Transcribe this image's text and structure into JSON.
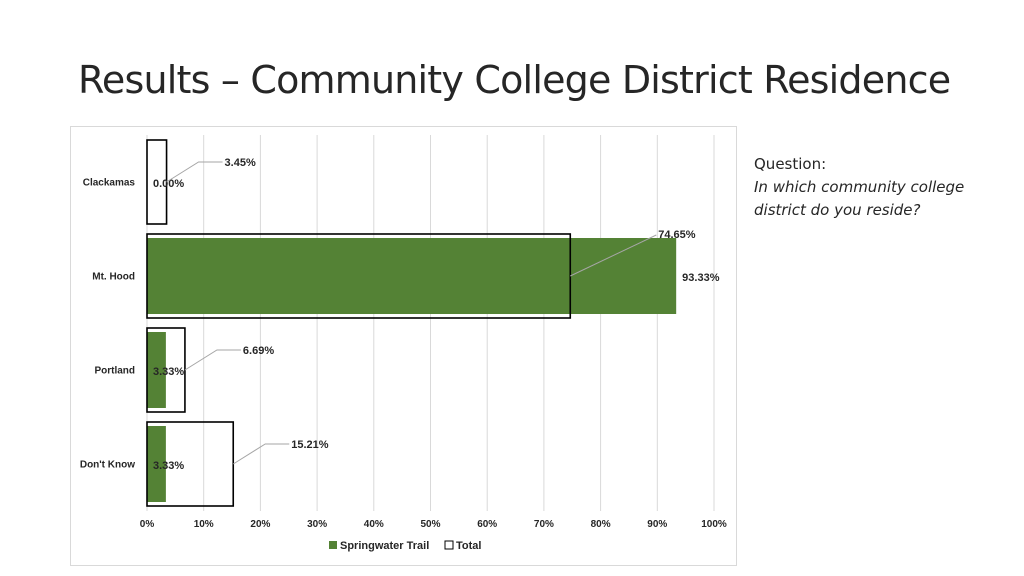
{
  "slide": {
    "title": "Results – Community College District Residence"
  },
  "question": {
    "label": "Question:",
    "text": "In which community college district do you reside?"
  },
  "colors": {
    "springwater": "#548235",
    "total_fill": "#ffffff",
    "total_stroke": "#000000",
    "grid": "#d9d9d9",
    "leader": "#a6a6a6"
  },
  "chart_data": {
    "type": "bar",
    "orientation": "horizontal",
    "title": "",
    "xlabel": "",
    "ylabel": "",
    "xlim": [
      0,
      100
    ],
    "x_ticks": [
      "0%",
      "10%",
      "20%",
      "30%",
      "40%",
      "50%",
      "60%",
      "70%",
      "80%",
      "90%",
      "100%"
    ],
    "categories": [
      "Clackamas",
      "Mt. Hood",
      "Portland",
      "Don't Know"
    ],
    "series": [
      {
        "name": "Springwater Trail",
        "values": [
          0.0,
          93.33,
          3.33,
          3.33
        ],
        "labels": [
          "0.00%",
          "93.33%",
          "3.33%",
          "3.33%"
        ]
      },
      {
        "name": "Total",
        "values": [
          3.45,
          74.65,
          6.69,
          15.21
        ],
        "labels": [
          "3.45%",
          "74.65%",
          "6.69%",
          "15.21%"
        ]
      }
    ],
    "legend": {
      "position": "bottom",
      "items": [
        "Springwater Trail",
        "Total"
      ]
    },
    "grid": true
  }
}
